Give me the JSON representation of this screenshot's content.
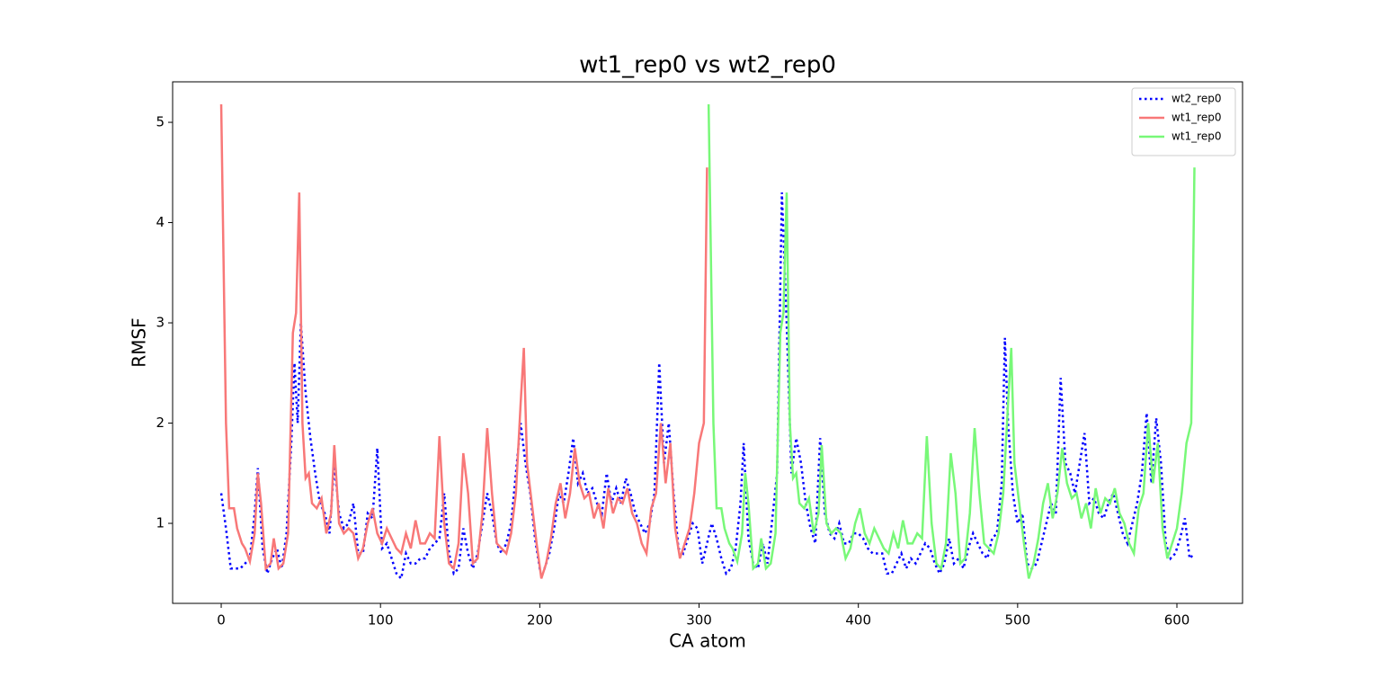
{
  "chart_data": {
    "type": "line",
    "title": "wt1_rep0 vs wt2_rep0",
    "x_label": "CA atom",
    "y_label": "RMSF",
    "xlim": [
      -30.5,
      641.2
    ],
    "ylim": [
      0.202,
      5.404
    ],
    "xticks": [
      0,
      100,
      200,
      300,
      400,
      500,
      600
    ],
    "yticks": [
      1,
      2,
      3,
      4,
      5
    ],
    "grid": false,
    "legend": "upper right",
    "series": [
      {
        "name": "wt2_rep0",
        "color": "#0000ff",
        "style": "dotted",
        "x": [
          0,
          3,
          6,
          9,
          12,
          15,
          18,
          21,
          23,
          26,
          29,
          32,
          35,
          38,
          41,
          44,
          46,
          48,
          50,
          53,
          56,
          59,
          62,
          65,
          68,
          71,
          74,
          77,
          80,
          83,
          86,
          89,
          92,
          95,
          98,
          101,
          104,
          107,
          110,
          113,
          116,
          119,
          122,
          125,
          128,
          131,
          134,
          137,
          140,
          143,
          146,
          149,
          152,
          155,
          158,
          161,
          164,
          167,
          170,
          173,
          176,
          179,
          182,
          185,
          188,
          191,
          194,
          197,
          200,
          203,
          206,
          209,
          212,
          215,
          218,
          221,
          224,
          227,
          230,
          233,
          236,
          239,
          242,
          245,
          248,
          251,
          254,
          257,
          260,
          263,
          266,
          269,
          272,
          275,
          278,
          281,
          284,
          287,
          290,
          293,
          296,
          299,
          302,
          305,
          308,
          311,
          314,
          317,
          320,
          323,
          326,
          328,
          331,
          334,
          337,
          340,
          343,
          346,
          349,
          352,
          355,
          358,
          361,
          364,
          367,
          370,
          373,
          376,
          379,
          382,
          385,
          388,
          391,
          394,
          397,
          400,
          403,
          406,
          409,
          412,
          415,
          418,
          421,
          424,
          427,
          430,
          433,
          436,
          439,
          442,
          445,
          448,
          451,
          454,
          457,
          460,
          463,
          466,
          469,
          472,
          475,
          478,
          481,
          484,
          487,
          490,
          492,
          494,
          497,
          500,
          503,
          506,
          509,
          512,
          515,
          518,
          521,
          524,
          527,
          530,
          533,
          536,
          539,
          542,
          545,
          548,
          551,
          554,
          557,
          560,
          563,
          566,
          569,
          572,
          575,
          578,
          581,
          584,
          587,
          590,
          593,
          596,
          599,
          602,
          605,
          608,
          611
        ],
        "values": [
          1.3,
          0.95,
          0.55,
          0.55,
          0.55,
          0.6,
          0.65,
          1.1,
          1.55,
          0.75,
          0.5,
          0.65,
          0.75,
          0.55,
          0.9,
          1.8,
          2.6,
          2.0,
          3.0,
          2.3,
          1.85,
          1.5,
          1.2,
          1.1,
          0.9,
          1.6,
          1.1,
          0.95,
          1.0,
          1.2,
          0.7,
          0.7,
          1.1,
          1.05,
          1.75,
          0.75,
          0.8,
          0.65,
          0.5,
          0.45,
          0.7,
          0.6,
          0.6,
          0.65,
          0.65,
          0.75,
          0.8,
          0.85,
          1.3,
          0.7,
          0.5,
          0.55,
          0.95,
          0.7,
          0.55,
          0.7,
          1.0,
          1.3,
          1.1,
          0.8,
          0.7,
          0.8,
          1.0,
          1.5,
          2.0,
          1.6,
          1.3,
          0.85,
          0.55,
          0.55,
          0.7,
          0.95,
          1.3,
          1.2,
          1.5,
          1.85,
          1.4,
          1.5,
          1.3,
          1.35,
          1.2,
          1.1,
          1.5,
          1.2,
          1.35,
          1.2,
          1.45,
          1.3,
          1.1,
          1.0,
          0.9,
          1.0,
          1.3,
          2.6,
          1.6,
          2.0,
          1.3,
          0.75,
          0.7,
          0.85,
          1.0,
          0.95,
          0.6,
          0.8,
          1.0,
          0.85,
          0.65,
          0.5,
          0.55,
          0.75,
          1.2,
          1.8,
          0.85,
          0.6,
          0.55,
          0.8,
          0.6,
          1.05,
          1.5,
          4.3,
          3.0,
          1.5,
          1.85,
          1.6,
          1.2,
          0.95,
          0.8,
          1.85,
          1.1,
          0.9,
          0.85,
          1.0,
          0.8,
          0.8,
          0.9,
          0.9,
          0.85,
          0.75,
          0.7,
          0.7,
          0.7,
          0.5,
          0.5,
          0.6,
          0.7,
          0.55,
          0.65,
          0.6,
          0.7,
          0.8,
          0.75,
          0.6,
          0.5,
          0.6,
          0.85,
          0.6,
          0.65,
          0.55,
          0.75,
          0.9,
          0.8,
          0.7,
          0.65,
          0.85,
          0.9,
          1.4,
          2.85,
          2.0,
          1.3,
          1.0,
          1.1,
          0.6,
          0.55,
          0.6,
          0.8,
          1.0,
          1.2,
          1.1,
          2.45,
          1.6,
          1.5,
          1.3,
          1.6,
          1.9,
          1.2,
          1.25,
          1.1,
          1.05,
          1.2,
          1.3,
          1.1,
          0.9,
          0.8,
          1.0,
          1.2,
          1.5,
          2.1,
          1.4,
          2.05,
          1.6,
          0.8,
          0.65,
          0.7,
          0.85,
          1.05,
          0.65,
          0.7
        ]
      },
      {
        "name": "wt1_rep0",
        "color": "#f87878",
        "style": "solid",
        "x": [
          0,
          3,
          5,
          8,
          10,
          13,
          15,
          18,
          21,
          23,
          25,
          28,
          31,
          33,
          36,
          39,
          42,
          45,
          47,
          49,
          51,
          53,
          55,
          57,
          60,
          63,
          66,
          69,
          71,
          74,
          77,
          80,
          83,
          86,
          89,
          92,
          95,
          98,
          101,
          104,
          107,
          110,
          113,
          116,
          119,
          122,
          125,
          128,
          131,
          134,
          137,
          140,
          143,
          146,
          149,
          152,
          155,
          158,
          161,
          164,
          167,
          170,
          173,
          176,
          179,
          182,
          185,
          188,
          190,
          192,
          195,
          198,
          201,
          204,
          207,
          210,
          213,
          216,
          219,
          222,
          225,
          228,
          231,
          234,
          237,
          240,
          243,
          246,
          249,
          252,
          255,
          258,
          261,
          264,
          267,
          270,
          273,
          276,
          279,
          282,
          285,
          288,
          291,
          294,
          297,
          300,
          303,
          305
        ],
        "values": [
          5.18,
          2.0,
          1.15,
          1.15,
          0.95,
          0.8,
          0.75,
          0.62,
          0.9,
          1.5,
          1.2,
          0.55,
          0.6,
          0.85,
          0.55,
          0.6,
          0.9,
          2.9,
          3.1,
          4.3,
          2.0,
          1.45,
          1.5,
          1.2,
          1.15,
          1.25,
          0.9,
          1.1,
          1.78,
          1.0,
          0.9,
          0.95,
          0.9,
          0.65,
          0.75,
          1.0,
          1.15,
          0.9,
          0.8,
          0.95,
          0.85,
          0.75,
          0.7,
          0.9,
          0.75,
          1.03,
          0.8,
          0.8,
          0.9,
          0.85,
          1.87,
          1.0,
          0.6,
          0.55,
          0.8,
          1.7,
          1.3,
          0.6,
          0.65,
          1.1,
          1.95,
          1.3,
          0.8,
          0.75,
          0.7,
          0.9,
          1.3,
          2.2,
          2.75,
          1.6,
          1.2,
          0.8,
          0.45,
          0.6,
          0.85,
          1.2,
          1.4,
          1.05,
          1.3,
          1.75,
          1.4,
          1.25,
          1.3,
          1.05,
          1.2,
          0.95,
          1.35,
          1.1,
          1.25,
          1.2,
          1.35,
          1.1,
          1.0,
          0.8,
          0.7,
          1.15,
          1.3,
          2.0,
          1.4,
          1.8,
          0.95,
          0.65,
          0.8,
          0.95,
          1.3,
          1.8,
          2.0,
          4.55
        ]
      },
      {
        "name": "wt1_rep0",
        "color": "#78f878",
        "style": "solid",
        "x": [
          306,
          309,
          311,
          314,
          316,
          319,
          321,
          324,
          327,
          329,
          331,
          334,
          337,
          339,
          342,
          345,
          348,
          351,
          353,
          355,
          357,
          359,
          361,
          363,
          366,
          369,
          372,
          375,
          377,
          380,
          383,
          386,
          389,
          392,
          395,
          398,
          401,
          404,
          407,
          410,
          413,
          416,
          419,
          422,
          425,
          428,
          431,
          434,
          437,
          440,
          443,
          446,
          449,
          452,
          455,
          458,
          461,
          464,
          467,
          470,
          473,
          476,
          479,
          482,
          485,
          488,
          491,
          494,
          496,
          498,
          501,
          504,
          507,
          510,
          513,
          516,
          519,
          522,
          525,
          528,
          531,
          534,
          537,
          540,
          543,
          546,
          549,
          552,
          555,
          558,
          561,
          564,
          567,
          570,
          573,
          576,
          579,
          582,
          585,
          588,
          591,
          594,
          597,
          600,
          603,
          606,
          609,
          611
        ],
        "values": [
          5.18,
          2.0,
          1.15,
          1.15,
          0.95,
          0.8,
          0.75,
          0.62,
          0.9,
          1.5,
          1.2,
          0.55,
          0.6,
          0.85,
          0.55,
          0.6,
          0.9,
          2.9,
          3.1,
          4.3,
          2.0,
          1.45,
          1.5,
          1.2,
          1.15,
          1.25,
          0.9,
          1.1,
          1.78,
          1.0,
          0.9,
          0.95,
          0.9,
          0.65,
          0.75,
          1.0,
          1.15,
          0.9,
          0.8,
          0.95,
          0.85,
          0.75,
          0.7,
          0.9,
          0.75,
          1.03,
          0.8,
          0.8,
          0.9,
          0.85,
          1.87,
          1.0,
          0.6,
          0.55,
          0.8,
          1.7,
          1.3,
          0.6,
          0.65,
          1.1,
          1.95,
          1.3,
          0.8,
          0.75,
          0.7,
          0.9,
          1.3,
          2.2,
          2.75,
          1.6,
          1.2,
          0.8,
          0.45,
          0.6,
          0.85,
          1.2,
          1.4,
          1.05,
          1.3,
          1.75,
          1.4,
          1.25,
          1.3,
          1.05,
          1.2,
          0.95,
          1.35,
          1.1,
          1.25,
          1.2,
          1.35,
          1.1,
          1.0,
          0.8,
          0.7,
          1.15,
          1.3,
          2.0,
          1.4,
          1.8,
          0.95,
          0.65,
          0.8,
          0.95,
          1.3,
          1.8,
          2.0,
          4.55
        ]
      }
    ]
  }
}
